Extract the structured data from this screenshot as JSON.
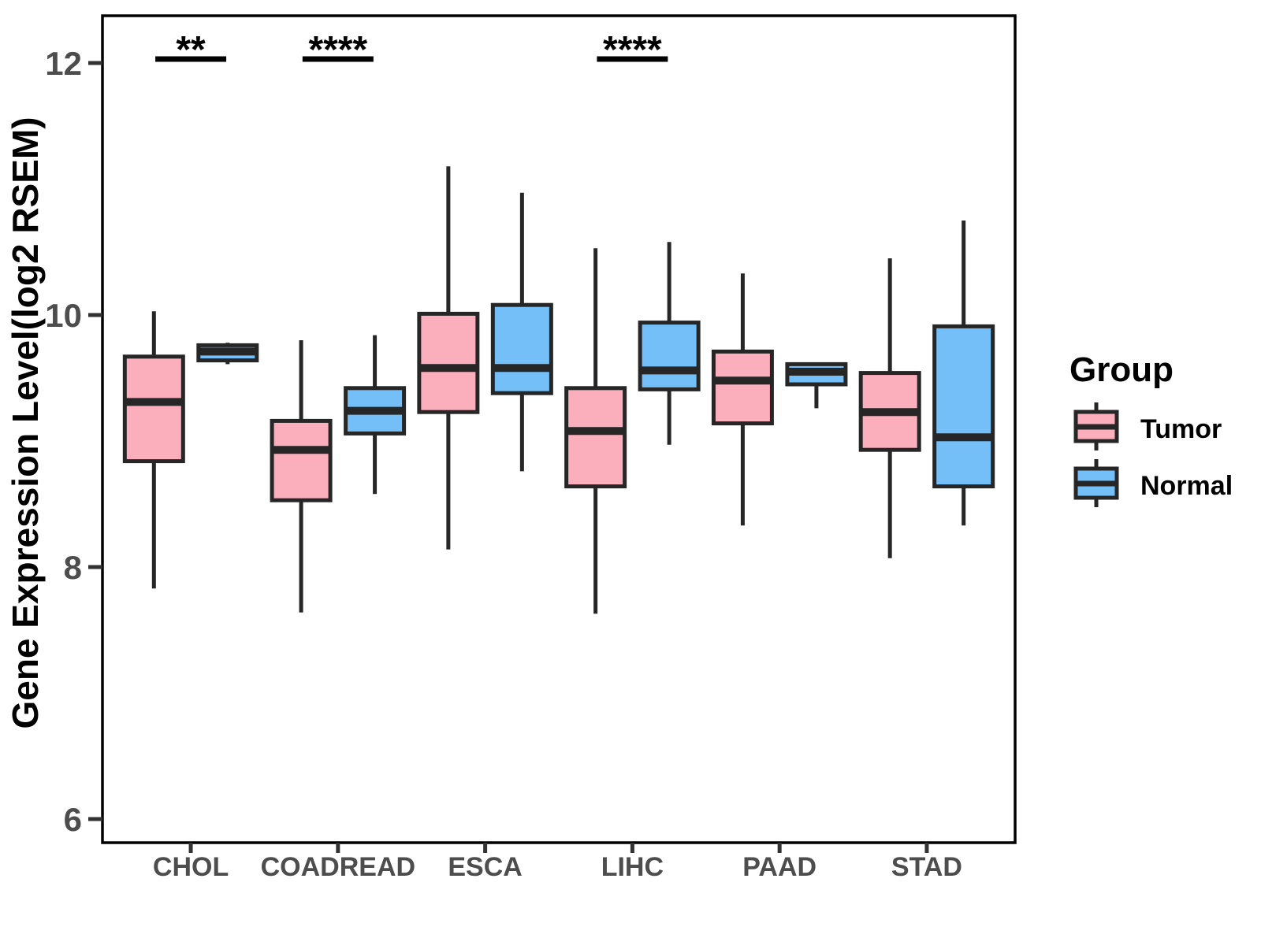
{
  "legend": {
    "title": "Group",
    "items": [
      {
        "label": "Tumor",
        "color": "#FBAEBC"
      },
      {
        "label": "Normal",
        "color": "#74BFF8"
      }
    ]
  },
  "style": {
    "box_stroke": "#262626",
    "tick_label_color": "#4D4D4D",
    "axis_color": "#000000"
  },
  "chart_data": {
    "type": "boxplot",
    "title": "",
    "xlabel": "",
    "ylabel": "Gene Expression Level(log2 RSEM)",
    "ylim": [
      5.8,
      12.4
    ],
    "y_ticks": [
      12,
      10,
      8,
      6
    ],
    "grid": false,
    "legend_position": "right",
    "categories": [
      "CHOL",
      "COADREAD",
      "ESCA",
      "LIHC",
      "PAAD",
      "STAD"
    ],
    "series": [
      {
        "name": "Tumor",
        "color": "#FBAEBC",
        "boxes": [
          {
            "min": 7.83,
            "q1": 8.84,
            "median": 9.31,
            "q3": 9.67,
            "max": 10.03
          },
          {
            "min": 7.64,
            "q1": 8.53,
            "median": 8.93,
            "q3": 9.16,
            "max": 9.8
          },
          {
            "min": 8.14,
            "q1": 9.23,
            "median": 9.58,
            "q3": 10.01,
            "max": 11.18
          },
          {
            "min": 7.63,
            "q1": 8.64,
            "median": 9.08,
            "q3": 9.42,
            "max": 10.53
          },
          {
            "min": 8.33,
            "q1": 9.14,
            "median": 9.48,
            "q3": 9.71,
            "max": 10.33
          },
          {
            "min": 8.07,
            "q1": 8.93,
            "median": 9.23,
            "q3": 9.54,
            "max": 10.45
          }
        ]
      },
      {
        "name": "Normal",
        "color": "#74BFF8",
        "boxes": [
          {
            "min": 9.61,
            "q1": 9.64,
            "median": 9.71,
            "q3": 9.76,
            "max": 9.78
          },
          {
            "min": 8.58,
            "q1": 9.06,
            "median": 9.24,
            "q3": 9.42,
            "max": 9.84
          },
          {
            "min": 8.76,
            "q1": 9.38,
            "median": 9.58,
            "q3": 10.08,
            "max": 10.97
          },
          {
            "min": 8.97,
            "q1": 9.41,
            "median": 9.56,
            "q3": 9.94,
            "max": 10.58
          },
          {
            "min": 9.26,
            "q1": 9.45,
            "median": 9.55,
            "q3": 9.61,
            "max": 9.62
          },
          {
            "min": 8.33,
            "q1": 8.64,
            "median": 9.03,
            "q3": 9.91,
            "max": 10.75
          }
        ]
      }
    ],
    "significance": [
      {
        "category": "CHOL",
        "label": "**"
      },
      {
        "category": "COADREAD",
        "label": "****"
      },
      {
        "category": "LIHC",
        "label": "****"
      }
    ]
  }
}
